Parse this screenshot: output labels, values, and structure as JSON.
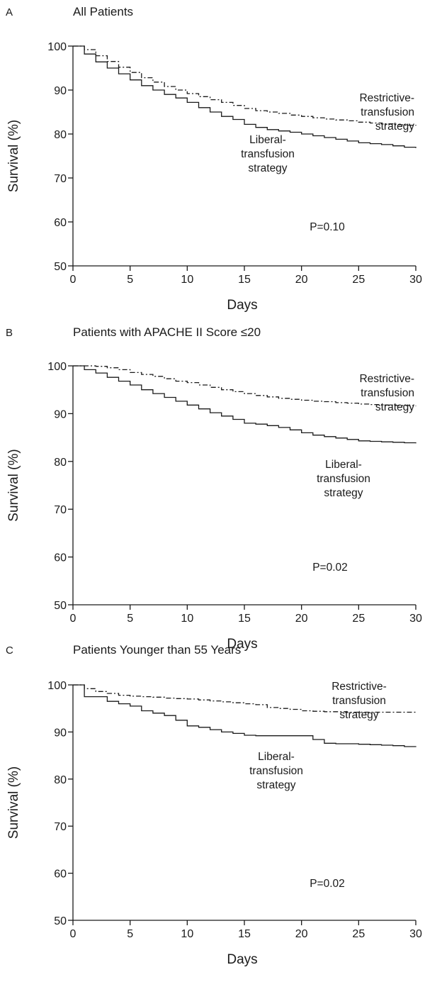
{
  "chart_data": [
    {
      "type": "line",
      "panel": "A",
      "title": "All Patients",
      "xlabel": "Days",
      "ylabel": "Survival (%)",
      "xlim": [
        0,
        30
      ],
      "ylim": [
        50,
        100
      ],
      "xticks": [
        0,
        5,
        10,
        15,
        20,
        25,
        30
      ],
      "yticks": [
        50,
        60,
        70,
        80,
        90,
        100
      ],
      "grid": false,
      "annotations": {
        "restrictive": [
          "Restrictive-",
          "transfusion",
          "strategy"
        ],
        "liberal": [
          "Liberal-",
          "transfusion",
          "strategy"
        ],
        "pvalue": "P=0.10"
      },
      "series": [
        {
          "key": "restrictive",
          "style": "dash-dot",
          "x": [
            0,
            1,
            2,
            3,
            4,
            5,
            6,
            7,
            8,
            9,
            10,
            11,
            12,
            13,
            14,
            15,
            16,
            17,
            18,
            19,
            20,
            21,
            22,
            23,
            24,
            25,
            26,
            27,
            28,
            29,
            30
          ],
          "y": [
            100,
            99.2,
            97.8,
            96.5,
            95.2,
            94.0,
            92.8,
            91.8,
            90.8,
            90.0,
            89.2,
            88.5,
            87.8,
            87.2,
            86.5,
            85.8,
            85.3,
            85.0,
            84.7,
            84.3,
            84.0,
            83.7,
            83.4,
            83.2,
            83.0,
            82.7,
            82.5,
            82.3,
            82.1,
            82.0,
            81.9
          ]
        },
        {
          "key": "liberal",
          "style": "solid",
          "x": [
            0,
            1,
            2,
            3,
            4,
            5,
            6,
            7,
            8,
            9,
            10,
            11,
            12,
            13,
            14,
            15,
            16,
            17,
            18,
            19,
            20,
            21,
            22,
            23,
            24,
            25,
            26,
            27,
            28,
            29,
            30
          ],
          "y": [
            100,
            98.2,
            96.4,
            95.0,
            93.7,
            92.3,
            91.0,
            90.0,
            89.0,
            88.2,
            87.2,
            86.0,
            85.0,
            84.0,
            83.3,
            82.2,
            81.5,
            81.0,
            80.7,
            80.4,
            80.0,
            79.6,
            79.2,
            78.8,
            78.4,
            78.0,
            77.8,
            77.6,
            77.3,
            77.0,
            76.8
          ]
        }
      ]
    },
    {
      "type": "line",
      "panel": "B",
      "title": "Patients with APACHE II Score ≤20",
      "xlabel": "Days",
      "ylabel": "Survival (%)",
      "xlim": [
        0,
        30
      ],
      "ylim": [
        50,
        100
      ],
      "xticks": [
        0,
        5,
        10,
        15,
        20,
        25,
        30
      ],
      "yticks": [
        50,
        60,
        70,
        80,
        90,
        100
      ],
      "grid": false,
      "annotations": {
        "restrictive": [
          "Restrictive-",
          "transfusion",
          "strategy"
        ],
        "liberal": [
          "Liberal-",
          "transfusion",
          "strategy"
        ],
        "pvalue": "P=0.02"
      },
      "series": [
        {
          "key": "restrictive",
          "style": "dash-dot",
          "x": [
            0,
            1,
            2,
            3,
            4,
            5,
            6,
            7,
            8,
            9,
            10,
            11,
            12,
            13,
            14,
            15,
            16,
            17,
            18,
            19,
            20,
            21,
            22,
            23,
            24,
            25,
            26,
            27,
            28,
            29,
            30
          ],
          "y": [
            100,
            100,
            99.9,
            99.6,
            99.2,
            98.6,
            98.2,
            97.8,
            97.3,
            96.8,
            96.5,
            96.0,
            95.5,
            95.0,
            94.6,
            94.2,
            93.8,
            93.5,
            93.2,
            93.0,
            92.8,
            92.6,
            92.5,
            92.3,
            92.2,
            92.0,
            91.9,
            91.8,
            91.7,
            91.7,
            91.6
          ]
        },
        {
          "key": "liberal",
          "style": "solid",
          "x": [
            0,
            1,
            2,
            3,
            4,
            5,
            6,
            7,
            8,
            9,
            10,
            11,
            12,
            13,
            14,
            15,
            16,
            17,
            18,
            19,
            20,
            21,
            22,
            23,
            24,
            25,
            26,
            27,
            28,
            29,
            30
          ],
          "y": [
            100,
            99.2,
            98.5,
            97.6,
            96.8,
            96.0,
            95.0,
            94.2,
            93.4,
            92.6,
            91.8,
            91.0,
            90.2,
            89.5,
            88.8,
            88.0,
            87.8,
            87.5,
            87.1,
            86.6,
            86.0,
            85.5,
            85.2,
            84.9,
            84.6,
            84.3,
            84.2,
            84.1,
            84.0,
            83.9,
            83.8
          ]
        }
      ]
    },
    {
      "type": "line",
      "panel": "C",
      "title": "Patients Younger than 55 Years",
      "xlabel": "Days",
      "ylabel": "Survival (%)",
      "xlim": [
        0,
        30
      ],
      "ylim": [
        50,
        100
      ],
      "xticks": [
        0,
        5,
        10,
        15,
        20,
        25,
        30
      ],
      "yticks": [
        50,
        60,
        70,
        80,
        90,
        100
      ],
      "grid": false,
      "annotations": {
        "restrictive": [
          "Restrictive-",
          "transfusion",
          "strategy"
        ],
        "liberal": [
          "Liberal-",
          "transfusion",
          "strategy"
        ],
        "pvalue": "P=0.02"
      },
      "series": [
        {
          "key": "restrictive",
          "style": "dash-dot",
          "x": [
            0,
            1,
            2,
            3,
            4,
            5,
            6,
            7,
            8,
            9,
            10,
            11,
            12,
            13,
            14,
            15,
            16,
            17,
            18,
            19,
            20,
            21,
            22,
            23,
            24,
            25,
            26,
            27,
            28,
            29,
            30
          ],
          "y": [
            100,
            99.2,
            98.6,
            98.2,
            97.8,
            97.6,
            97.5,
            97.4,
            97.2,
            97.1,
            97.0,
            96.8,
            96.6,
            96.4,
            96.2,
            96.0,
            95.8,
            95.2,
            95.0,
            94.8,
            94.5,
            94.4,
            94.3,
            94.3,
            94.2,
            94.2,
            94.2,
            94.2,
            94.2,
            94.2,
            94.2
          ]
        },
        {
          "key": "liberal",
          "style": "solid",
          "x": [
            0,
            1,
            2,
            3,
            4,
            5,
            6,
            7,
            8,
            9,
            10,
            11,
            12,
            13,
            14,
            15,
            16,
            17,
            18,
            19,
            20,
            21,
            22,
            23,
            24,
            25,
            26,
            27,
            28,
            29,
            30
          ],
          "y": [
            100,
            97.5,
            97.5,
            96.5,
            96.0,
            95.5,
            94.5,
            94.0,
            93.5,
            92.5,
            91.3,
            91.0,
            90.5,
            90.0,
            89.7,
            89.3,
            89.2,
            89.2,
            89.2,
            89.2,
            89.2,
            88.4,
            87.6,
            87.5,
            87.5,
            87.4,
            87.3,
            87.2,
            87.1,
            86.9,
            86.8
          ]
        }
      ]
    }
  ]
}
